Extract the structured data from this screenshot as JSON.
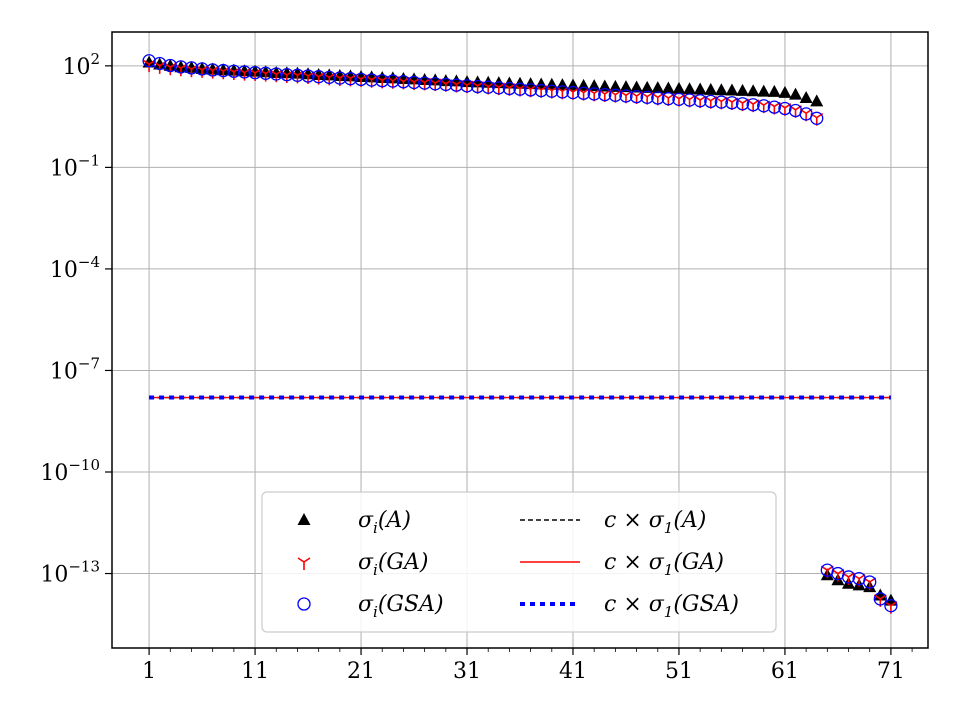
{
  "chart_data": {
    "type": "scatter",
    "x_axis": {
      "range": [
        -2.5,
        74.5
      ],
      "ticks": [
        1,
        11,
        21,
        31,
        41,
        51,
        61,
        71
      ],
      "tick_labels": [
        "1",
        "11",
        "21",
        "31",
        "41",
        "51",
        "61",
        "71"
      ]
    },
    "y_axis": {
      "scale": "log",
      "range_exponents": [
        -15.2,
        3.0
      ],
      "ticks_exponents": [
        2,
        -1,
        -4,
        -7,
        -10,
        -13
      ],
      "tick_labels": [
        {
          "base": "10",
          "exp": "2"
        },
        {
          "base": "10",
          "exp": "−1"
        },
        {
          "base": "10",
          "exp": "−4"
        },
        {
          "base": "10",
          "exp": "−7"
        },
        {
          "base": "10",
          "exp": "−10"
        },
        {
          "base": "10",
          "exp": "−13"
        }
      ]
    },
    "grid": true,
    "legend_position": "lower-center",
    "series": [
      {
        "name": "σi(A)",
        "marker": "triangle",
        "color": "#000000",
        "x": [
          1,
          2,
          3,
          4,
          5,
          6,
          7,
          8,
          9,
          10,
          11,
          12,
          13,
          14,
          15,
          16,
          17,
          18,
          19,
          20,
          21,
          22,
          23,
          24,
          25,
          26,
          27,
          28,
          29,
          30,
          31,
          32,
          33,
          34,
          35,
          36,
          37,
          38,
          39,
          40,
          41,
          42,
          43,
          44,
          45,
          46,
          47,
          48,
          49,
          50,
          51,
          52,
          53,
          54,
          55,
          56,
          57,
          58,
          59,
          60,
          61,
          62,
          63,
          64,
          65,
          66,
          67,
          68,
          69,
          70,
          71
        ],
        "log10_y": [
          2.1,
          2.04,
          2.0,
          1.96,
          1.94,
          1.91,
          1.89,
          1.87,
          1.86,
          1.84,
          1.83,
          1.81,
          1.79,
          1.78,
          1.77,
          1.75,
          1.73,
          1.72,
          1.7,
          1.69,
          1.67,
          1.66,
          1.64,
          1.63,
          1.61,
          1.6,
          1.58,
          1.57,
          1.55,
          1.54,
          1.52,
          1.51,
          1.5,
          1.49,
          1.48,
          1.47,
          1.46,
          1.45,
          1.44,
          1.43,
          1.42,
          1.41,
          1.4,
          1.39,
          1.38,
          1.37,
          1.36,
          1.35,
          1.34,
          1.33,
          1.32,
          1.31,
          1.3,
          1.29,
          1.28,
          1.27,
          1.26,
          1.25,
          1.24,
          1.23,
          1.2,
          1.15,
          1.05,
          0.95,
          -13.05,
          -13.2,
          -13.3,
          -13.35,
          -13.4,
          -13.65,
          -13.8
        ]
      },
      {
        "name": "σi(GA)",
        "marker": "tri-down",
        "color": "#ff0000",
        "x": [
          1,
          2,
          3,
          4,
          5,
          6,
          7,
          8,
          9,
          10,
          11,
          12,
          13,
          14,
          15,
          16,
          17,
          18,
          19,
          20,
          21,
          22,
          23,
          24,
          25,
          26,
          27,
          28,
          29,
          30,
          31,
          32,
          33,
          34,
          35,
          36,
          37,
          38,
          39,
          40,
          41,
          42,
          43,
          44,
          45,
          46,
          47,
          48,
          49,
          50,
          51,
          52,
          53,
          54,
          55,
          56,
          57,
          58,
          59,
          60,
          61,
          62,
          63,
          64,
          65,
          66,
          67,
          68,
          69,
          70,
          71
        ],
        "log10_y": [
          2.05,
          2.0,
          1.96,
          1.93,
          1.9,
          1.88,
          1.86,
          1.84,
          1.82,
          1.8,
          1.79,
          1.77,
          1.75,
          1.73,
          1.72,
          1.7,
          1.68,
          1.66,
          1.64,
          1.63,
          1.61,
          1.59,
          1.57,
          1.56,
          1.54,
          1.52,
          1.51,
          1.49,
          1.47,
          1.45,
          1.43,
          1.41,
          1.39,
          1.37,
          1.35,
          1.33,
          1.31,
          1.29,
          1.27,
          1.25,
          1.23,
          1.21,
          1.19,
          1.17,
          1.15,
          1.13,
          1.11,
          1.09,
          1.07,
          1.05,
          1.03,
          1.01,
          0.99,
          0.97,
          0.95,
          0.93,
          0.9,
          0.87,
          0.84,
          0.8,
          0.76,
          0.7,
          0.6,
          0.47,
          -12.9,
          -13.0,
          -13.1,
          -13.15,
          -13.25,
          -13.75,
          -13.95
        ]
      },
      {
        "name": "σi(GSA)",
        "marker": "circle",
        "color": "#0000ff",
        "x": [
          1,
          2,
          3,
          4,
          5,
          6,
          7,
          8,
          9,
          10,
          11,
          12,
          13,
          14,
          15,
          16,
          17,
          18,
          19,
          20,
          21,
          22,
          23,
          24,
          25,
          26,
          27,
          28,
          29,
          30,
          31,
          32,
          33,
          34,
          35,
          36,
          37,
          38,
          39,
          40,
          41,
          42,
          43,
          44,
          45,
          46,
          47,
          48,
          49,
          50,
          51,
          52,
          53,
          54,
          55,
          56,
          57,
          58,
          59,
          60,
          61,
          62,
          63,
          64,
          65,
          66,
          67,
          68,
          69,
          70,
          71
        ],
        "log10_y": [
          2.15,
          2.07,
          2.01,
          1.97,
          1.94,
          1.91,
          1.88,
          1.86,
          1.84,
          1.82,
          1.8,
          1.78,
          1.76,
          1.74,
          1.72,
          1.7,
          1.68,
          1.66,
          1.64,
          1.62,
          1.6,
          1.58,
          1.56,
          1.55,
          1.53,
          1.51,
          1.49,
          1.47,
          1.45,
          1.43,
          1.41,
          1.39,
          1.37,
          1.35,
          1.33,
          1.31,
          1.29,
          1.27,
          1.25,
          1.23,
          1.21,
          1.19,
          1.17,
          1.15,
          1.13,
          1.11,
          1.09,
          1.07,
          1.05,
          1.03,
          1.01,
          0.99,
          0.97,
          0.95,
          0.93,
          0.91,
          0.88,
          0.85,
          0.82,
          0.78,
          0.74,
          0.68,
          0.58,
          0.45,
          -12.9,
          -13.0,
          -13.1,
          -13.15,
          -13.25,
          -13.75,
          -13.95
        ]
      }
    ],
    "reference_lines": [
      {
        "name": "c × σ1(A)",
        "style": "dashed",
        "color": "#000000",
        "log10_y": -7.8,
        "x_range": [
          1,
          71
        ]
      },
      {
        "name": "c × σ1(GA)",
        "style": "solid",
        "color": "#ff0000",
        "log10_y": -7.8,
        "x_range": [
          1,
          71
        ]
      },
      {
        "name": "c × σ1(GSA)",
        "style": "dotted",
        "color": "#0000ff",
        "log10_y": -7.8,
        "x_range": [
          1,
          71
        ]
      }
    ]
  }
}
